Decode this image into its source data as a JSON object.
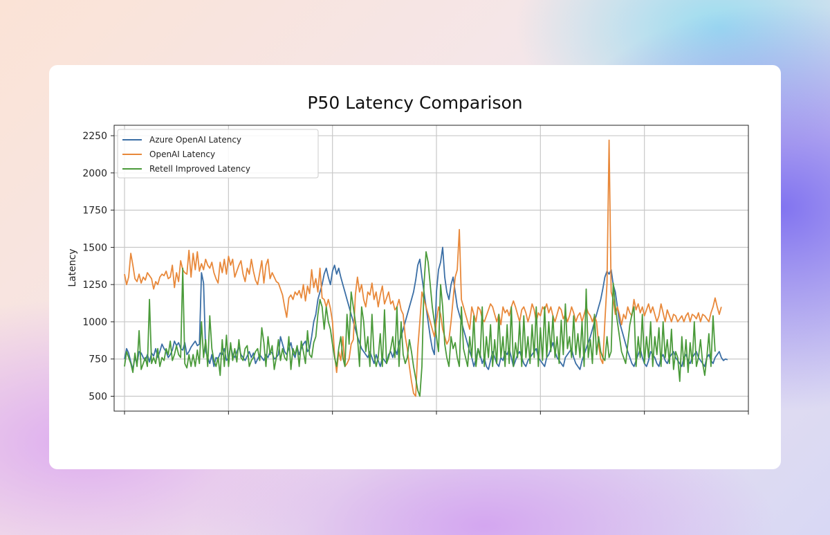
{
  "chart_data": {
    "type": "line",
    "title": "P50 Latency Comparison",
    "xlabel": "",
    "ylabel": "Latency",
    "xlim": [
      -5,
      300
    ],
    "ylim": [
      400,
      2320
    ],
    "yticks": [
      500,
      750,
      1000,
      1250,
      1500,
      1750,
      2000,
      2250
    ],
    "xticks": [
      0,
      50,
      100,
      150,
      200,
      250,
      300
    ],
    "grid": true,
    "legend_position": "top-left",
    "series": [
      {
        "name": "Azure OpenAI Latency",
        "color": "#3a6ea5",
        "values": [
          750,
          820,
          790,
          730,
          680,
          760,
          720,
          800,
          790,
          760,
          740,
          780,
          730,
          790,
          770,
          820,
          760,
          800,
          850,
          820,
          800,
          760,
          780,
          810,
          870,
          840,
          860,
          820,
          810,
          860,
          780,
          800,
          830,
          850,
          870,
          840,
          850,
          1330,
          1260,
          800,
          760,
          720,
          780,
          700,
          760,
          750,
          790,
          780,
          820,
          740,
          760,
          840,
          780,
          760,
          800,
          830,
          780,
          760,
          740,
          770,
          800,
          760,
          790,
          720,
          750,
          780,
          760,
          740,
          780,
          760,
          800,
          790,
          750,
          760,
          780,
          900,
          850,
          800,
          780,
          820,
          860,
          790,
          760,
          830,
          780,
          820,
          850,
          870,
          800,
          820,
          900,
          1000,
          1050,
          1150,
          1200,
          1250,
          1320,
          1360,
          1300,
          1250,
          1340,
          1380,
          1320,
          1360,
          1300,
          1250,
          1200,
          1150,
          1100,
          1050,
          1000,
          950,
          900,
          860,
          820,
          800,
          780,
          760,
          800,
          760,
          720,
          780,
          740,
          700,
          760,
          740,
          720,
          780,
          800,
          760,
          820,
          780,
          860,
          900,
          950,
          1000,
          1050,
          1100,
          1150,
          1200,
          1280,
          1380,
          1420,
          1300,
          1200,
          1100,
          1000,
          900,
          820,
          780,
          1200,
          1350,
          1400,
          1500,
          1300,
          1200,
          1150,
          1250,
          1300,
          1200,
          1100,
          1050,
          1000,
          950,
          900,
          850,
          800,
          760,
          700,
          750,
          820,
          780,
          720,
          760,
          700,
          680,
          740,
          800,
          760,
          720,
          700,
          760,
          740,
          800,
          780,
          820,
          760,
          700,
          740,
          780,
          800,
          760,
          720,
          700,
          740,
          760,
          780,
          800,
          820,
          760,
          740,
          720,
          700,
          760,
          780,
          820,
          860,
          800,
          760,
          740,
          720,
          700,
          760,
          780,
          800,
          820,
          760,
          720,
          700,
          680,
          740,
          780,
          820,
          860,
          900,
          950,
          1000,
          1050,
          1100,
          1150,
          1220,
          1300,
          1340,
          1320,
          1350,
          1250,
          1200,
          1100,
          1000,
          950,
          900,
          850,
          800,
          760,
          720,
          700,
          740,
          780,
          820,
          760,
          720,
          700,
          740,
          800,
          780,
          760,
          720,
          700,
          760,
          780,
          740,
          720,
          760,
          780,
          800,
          760,
          740,
          720,
          700,
          760,
          780,
          740,
          720,
          760,
          780,
          800,
          760,
          740,
          720,
          700,
          760,
          780,
          740,
          720,
          760,
          780,
          800,
          760,
          740,
          750,
          745
        ]
      },
      {
        "name": "OpenAI Latency",
        "color": "#e8883a",
        "values": [
          1320,
          1250,
          1300,
          1460,
          1380,
          1290,
          1270,
          1320,
          1260,
          1300,
          1280,
          1330,
          1310,
          1290,
          1220,
          1270,
          1250,
          1300,
          1320,
          1310,
          1340,
          1290,
          1300,
          1380,
          1230,
          1330,
          1270,
          1410,
          1350,
          1330,
          1320,
          1480,
          1300,
          1460,
          1350,
          1470,
          1340,
          1390,
          1350,
          1420,
          1380,
          1360,
          1400,
          1330,
          1290,
          1260,
          1400,
          1330,
          1420,
          1320,
          1440,
          1380,
          1420,
          1300,
          1340,
          1380,
          1410,
          1320,
          1270,
          1360,
          1320,
          1420,
          1340,
          1280,
          1250,
          1330,
          1410,
          1260,
          1380,
          1420,
          1290,
          1330,
          1300,
          1270,
          1260,
          1220,
          1180,
          1100,
          1030,
          1160,
          1180,
          1150,
          1200,
          1180,
          1210,
          1160,
          1250,
          1140,
          1240,
          1190,
          1350,
          1230,
          1290,
          1200,
          1360,
          1160,
          1150,
          1100,
          1150,
          1090,
          1000,
          780,
          660,
          800,
          740,
          900,
          700,
          720,
          750,
          850,
          880,
          1180,
          1300,
          1200,
          1250,
          1150,
          1100,
          1200,
          1180,
          1260,
          1150,
          1200,
          1100,
          1180,
          1240,
          1120,
          1160,
          1200,
          1120,
          1140,
          1080,
          1100,
          1150,
          1080,
          1050,
          900,
          820,
          700,
          600,
          520,
          500,
          820,
          1000,
          1200,
          1150,
          1100,
          1050,
          1000,
          950,
          900,
          1000,
          1100,
          1050,
          950,
          900,
          850,
          880,
          1000,
          1150,
          1300,
          1350,
          1620,
          1150,
          1100,
          1050,
          1000,
          950,
          1100,
          1050,
          1000,
          1100,
          1080,
          1020,
          1000,
          1040,
          1080,
          1120,
          1100,
          1050,
          1000,
          1050,
          980,
          1100,
          1060,
          1080,
          1040,
          1100,
          1140,
          1100,
          1050,
          1000,
          1080,
          1100,
          1060,
          1000,
          1050,
          1120,
          1080,
          1000,
          1060,
          1040,
          1100,
          1080,
          1120,
          1060,
          1100,
          1040,
          1000,
          1050,
          1100,
          1080,
          1020,
          1050,
          1000,
          1040,
          1100,
          1060,
          1000,
          1040,
          1060,
          1000,
          1050,
          1100,
          1060,
          1040,
          1000,
          1040,
          1000,
          850,
          750,
          720,
          1000,
          1260,
          2220,
          1200,
          1150,
          1050,
          1100,
          1050,
          980,
          1050,
          1020,
          1100,
          1060,
          1040,
          1150,
          1080,
          1120,
          1060,
          1100,
          1040,
          1080,
          1120,
          1060,
          1100,
          1050,
          1000,
          1040,
          1120,
          1060,
          1000,
          1080,
          1040,
          1000,
          1050,
          1040,
          1000,
          1020,
          1040,
          1000,
          1040,
          1060,
          1000,
          1050,
          1040,
          1020,
          1060,
          1000,
          1050,
          1040,
          1020,
          1000,
          1060,
          1100,
          1160,
          1100,
          1050,
          1100
        ]
      },
      {
        "name": "Retell Improved Latency",
        "color": "#4a9a3a",
        "values": [
          700,
          800,
          760,
          720,
          660,
          790,
          700,
          940,
          680,
          720,
          760,
          700,
          1150,
          720,
          760,
          720,
          820,
          700,
          760,
          740,
          820,
          780,
          870,
          740,
          780,
          840,
          780,
          760,
          1360,
          720,
          690,
          780,
          700,
          780,
          700,
          810,
          720,
          1000,
          760,
          880,
          700,
          1040,
          820,
          740,
          700,
          760,
          640,
          880,
          700,
          910,
          700,
          860,
          740,
          820,
          730,
          880,
          760,
          740,
          820,
          840,
          700,
          740,
          760,
          800,
          820,
          740,
          960,
          860,
          700,
          900,
          780,
          840,
          680,
          760,
          880,
          740,
          820,
          760,
          740,
          900,
          680,
          820,
          780,
          840,
          700,
          870,
          800,
          720,
          940,
          780,
          760,
          860,
          900,
          1050,
          1150,
          1100,
          950,
          1100,
          1000,
          950,
          850,
          760,
          700,
          820,
          900,
          760,
          700,
          1050,
          850,
          1200,
          1100,
          1000,
          900,
          700,
          1100,
          1000,
          800,
          900,
          700,
          1050,
          780,
          700,
          760,
          920,
          700,
          1080,
          720,
          760,
          820,
          900,
          760,
          1100,
          700,
          1000,
          780,
          720,
          760,
          880,
          800,
          700,
          620,
          540,
          500,
          700,
          1250,
          1470,
          1400,
          1250,
          1100,
          1000,
          900,
          800,
          1250,
          1100,
          850,
          760,
          700,
          900,
          820,
          860,
          760,
          700,
          1100,
          820,
          760,
          700,
          900,
          760,
          1040,
          700,
          820,
          760,
          1100,
          700,
          900,
          760,
          980,
          700,
          880,
          720,
          1050,
          760,
          900,
          700,
          980,
          720,
          1100,
          700,
          860,
          760,
          1000,
          700,
          1040,
          760,
          900,
          720,
          980,
          760,
          1100,
          700,
          960,
          740,
          1100,
          760,
          1000,
          800,
          1040,
          760,
          900,
          720,
          1010,
          780,
          1120,
          820,
          900,
          760,
          1040,
          780,
          920,
          760,
          1000,
          700,
          1220,
          760,
          880,
          720,
          1050,
          780,
          900,
          800,
          760,
          740,
          900,
          760,
          800,
          1260,
          1100,
          1000,
          900,
          800,
          760,
          720,
          850,
          980,
          1050,
          1100,
          700,
          900,
          760,
          1050,
          720,
          900,
          760,
          1000,
          700,
          900,
          780,
          960,
          700,
          1000,
          760,
          880,
          720,
          950,
          680,
          800,
          760,
          600,
          900,
          700,
          880,
          660,
          860,
          720,
          1000,
          700,
          760,
          880,
          720,
          640,
          760,
          920,
          700,
          1040,
          800
        ]
      }
    ]
  }
}
